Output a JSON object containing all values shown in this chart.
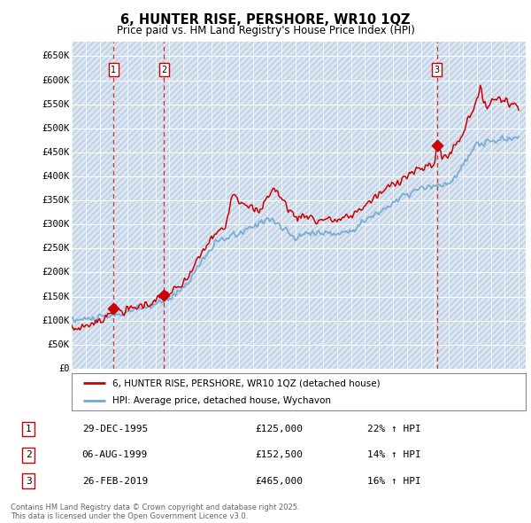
{
  "title": "6, HUNTER RISE, PERSHORE, WR10 1QZ",
  "subtitle": "Price paid vs. HM Land Registry's House Price Index (HPI)",
  "ylim": [
    0,
    680000
  ],
  "yticks": [
    0,
    50000,
    100000,
    150000,
    200000,
    250000,
    300000,
    350000,
    400000,
    450000,
    500000,
    550000,
    600000,
    650000
  ],
  "ytick_labels": [
    "£0",
    "£50K",
    "£100K",
    "£150K",
    "£200K",
    "£250K",
    "£300K",
    "£350K",
    "£400K",
    "£450K",
    "£500K",
    "£550K",
    "£600K",
    "£650K"
  ],
  "background_color": "#ffffff",
  "plot_bg_color": "#dce6f1",
  "hatch_color": "#b8cce4",
  "grid_color": "#ffffff",
  "hpi_line_color": "#6fa8d0",
  "price_line_color": "#cc0000",
  "sale1_date": "29-DEC-1995",
  "sale1_price": 125000,
  "sale1_pct": "22%",
  "sale1_x": 1995.99,
  "sale2_date": "06-AUG-1999",
  "sale2_price": 152500,
  "sale2_pct": "14%",
  "sale2_x": 1999.6,
  "sale3_date": "26-FEB-2019",
  "sale3_price": 465000,
  "sale3_pct": "16%",
  "sale3_x": 2019.15,
  "legend_label1": "6, HUNTER RISE, PERSHORE, WR10 1QZ (detached house)",
  "legend_label2": "HPI: Average price, detached house, Wychavon",
  "footer": "Contains HM Land Registry data © Crown copyright and database right 2025.\nThis data is licensed under the Open Government Licence v3.0.",
  "xmin": 1993,
  "xmax": 2025.5
}
